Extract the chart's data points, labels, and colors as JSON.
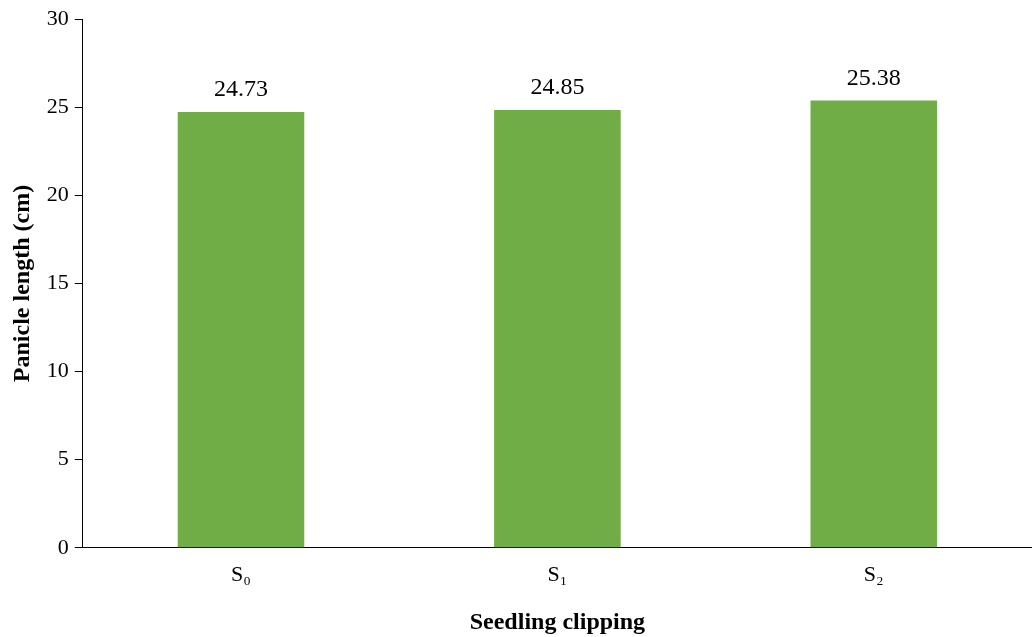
{
  "chart_data": {
    "type": "bar",
    "xlabel": "Seedling clipping",
    "ylabel": "Panicle length (cm)",
    "categories": [
      "S₀",
      "S₁",
      "S₂"
    ],
    "series": [
      {
        "color": "#70ad47",
        "values": [
          24.73,
          24.85,
          25.38
        ]
      }
    ],
    "ylim": [
      0,
      30
    ],
    "yticks": [
      0,
      5,
      10,
      15,
      20,
      25,
      30
    ],
    "grid": false,
    "legend": false,
    "data_labels": true
  }
}
